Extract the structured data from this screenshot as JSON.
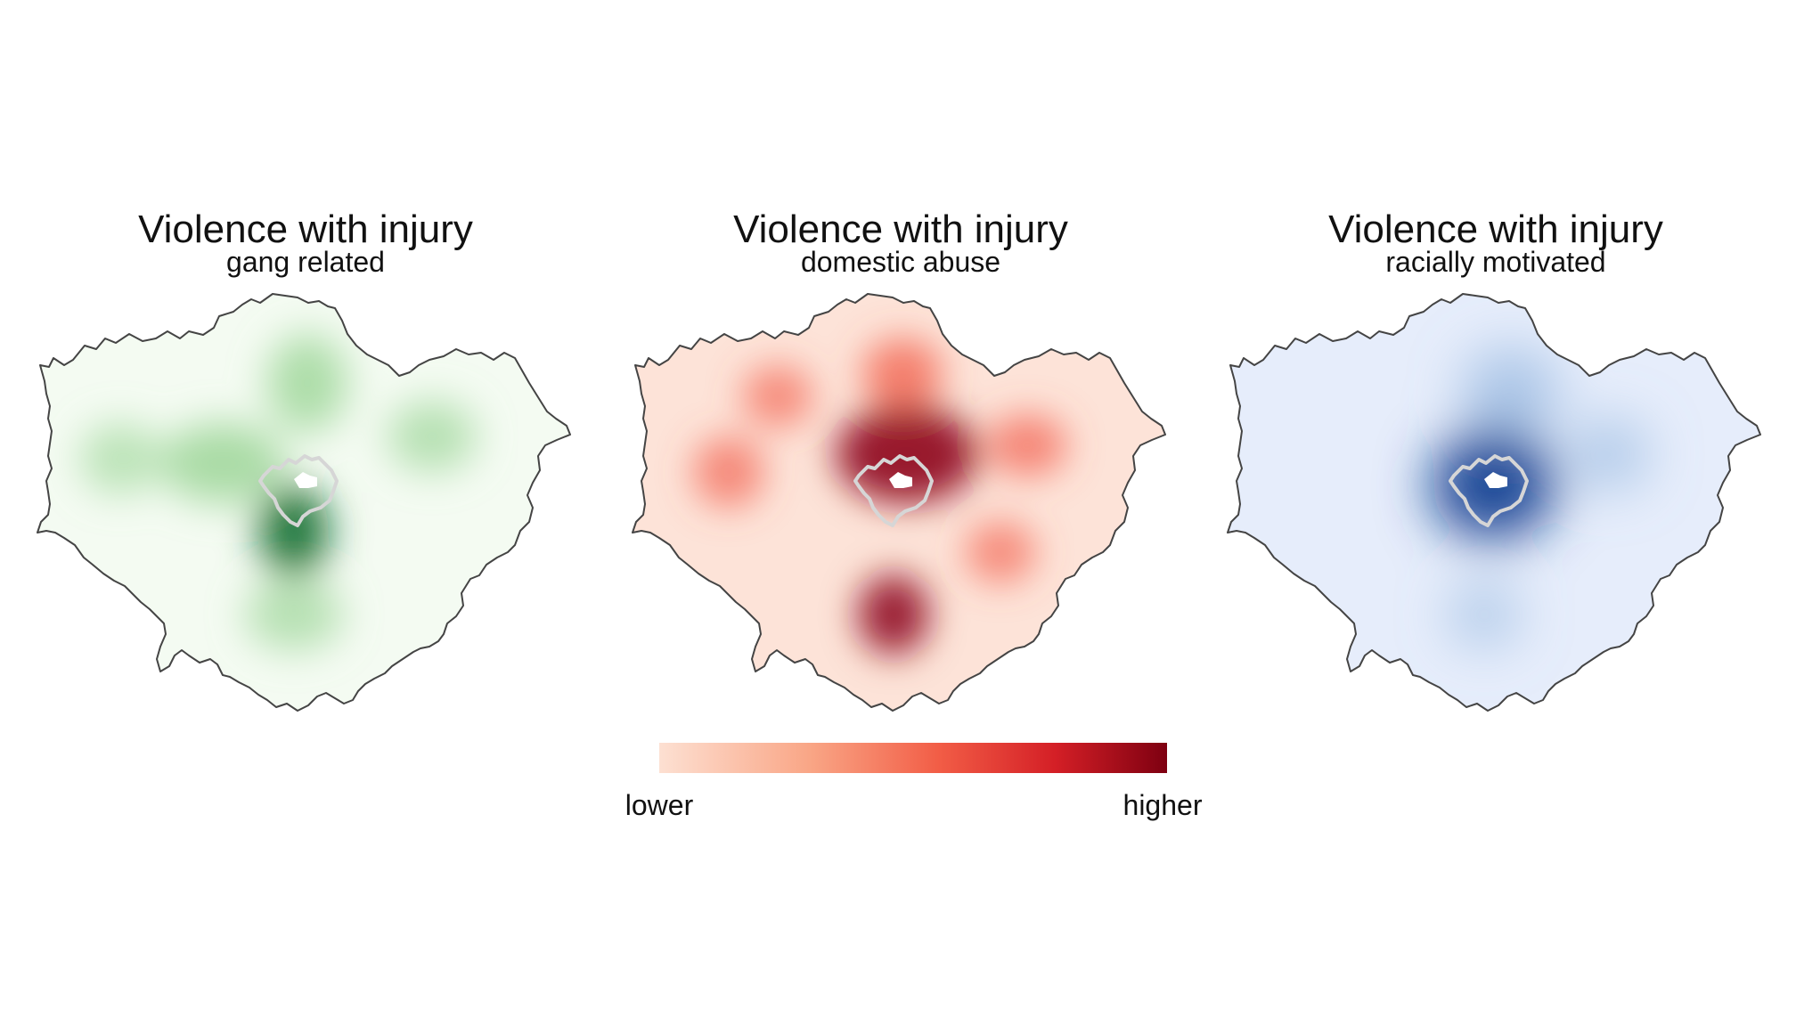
{
  "figure_type": "kernel density heat maps of London",
  "panels": [
    {
      "title": "Violence with injury",
      "subtitle": "gang related",
      "colors": {
        "low": "#f4fbf2",
        "mid": "#8fd08a",
        "high": "#0f6b2e"
      },
      "hotspots": [
        {
          "level": 0.95,
          "note": "south of centre"
        },
        {
          "level": 0.65,
          "note": "central / west of centre"
        },
        {
          "level": 0.6,
          "note": "north of centre"
        },
        {
          "level": 0.45,
          "note": "east"
        },
        {
          "level": 0.45,
          "note": "south"
        },
        {
          "level": 0.35,
          "note": "west"
        }
      ]
    },
    {
      "title": "Violence with injury",
      "subtitle": "domestic abuse",
      "colors": {
        "low": "#fde3d8",
        "mid": "#f2604d",
        "high": "#8b0018"
      },
      "hotspots": [
        {
          "level": 0.9,
          "note": "central / east of centre"
        },
        {
          "level": 0.85,
          "note": "south"
        },
        {
          "level": 0.7,
          "note": "north"
        },
        {
          "level": 0.6,
          "note": "east"
        },
        {
          "level": 0.55,
          "note": "west"
        },
        {
          "level": 0.5,
          "note": "north-west"
        },
        {
          "level": 0.5,
          "note": "south-east"
        }
      ]
    },
    {
      "title": "Violence with injury",
      "subtitle": "racially motivated",
      "colors": {
        "low": "#e6edfb",
        "mid": "#7fa9d8",
        "high": "#0a3d8f"
      },
      "hotspots": [
        {
          "level": 1.0,
          "note": "central"
        },
        {
          "level": 0.4,
          "note": "north"
        },
        {
          "level": 0.3,
          "note": "south"
        },
        {
          "level": 0.3,
          "note": "east"
        }
      ]
    }
  ],
  "legend": {
    "low_label": "lower",
    "high_label": "higher",
    "colors": [
      "#fde0d2",
      "#f9a585",
      "#f25d46",
      "#d41f26",
      "#7e0011"
    ]
  },
  "styles": {
    "boundary_color": "#444444",
    "city_outline_color": "#d6d6d6"
  }
}
